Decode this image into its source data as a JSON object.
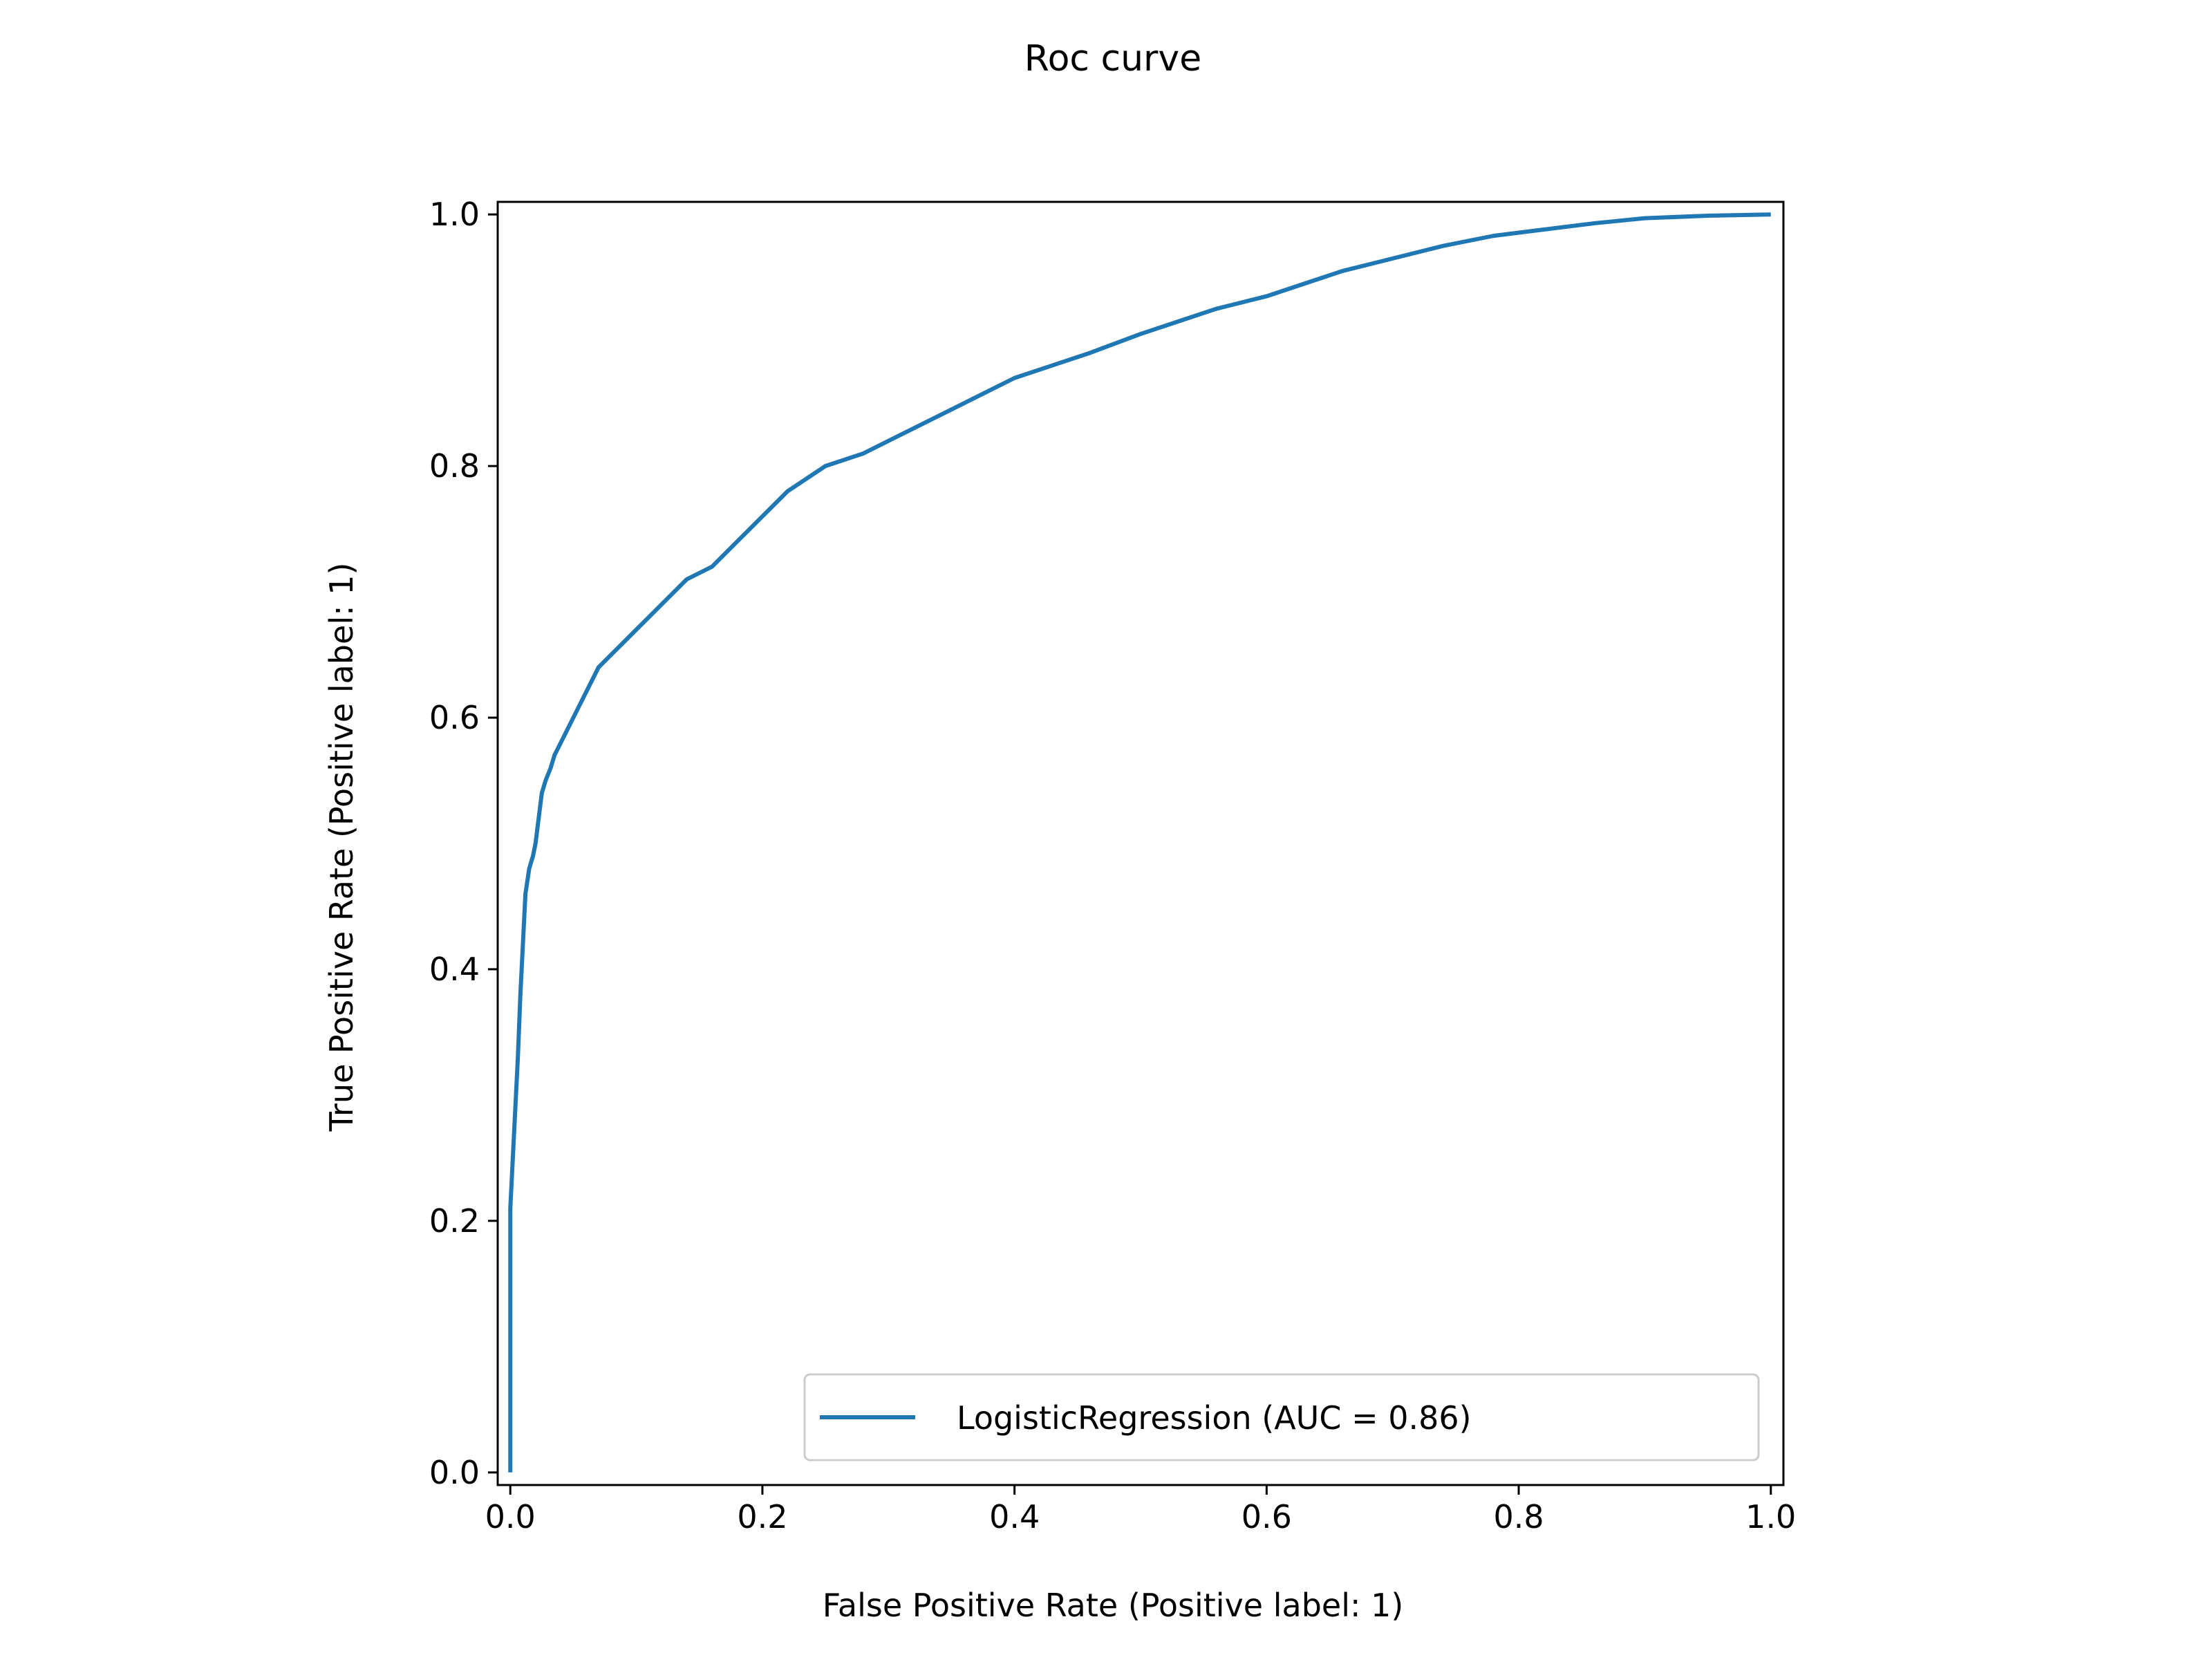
{
  "chart_data": {
    "type": "line",
    "title": "Roc curve",
    "xlabel": "False Positive Rate (Positive label: 1)",
    "ylabel": "True Positive Rate (Positive label: 1)",
    "xlim": [
      -0.01,
      1.01
    ],
    "ylim": [
      -0.01,
      1.01
    ],
    "xticks": [
      0.0,
      0.2,
      0.4,
      0.6,
      0.8,
      1.0
    ],
    "xtick_labels": [
      "0.0",
      "0.2",
      "0.4",
      "0.6",
      "0.8",
      "1.0"
    ],
    "yticks": [
      0.0,
      0.2,
      0.4,
      0.6,
      0.8,
      1.0
    ],
    "ytick_labels": [
      "0.0",
      "0.2",
      "0.4",
      "0.6",
      "0.8",
      "1.0"
    ],
    "grid": false,
    "legend": {
      "position": "lower right"
    },
    "series": [
      {
        "name": "LogisticRegression (AUC = 0.86)",
        "color": "#1f77b4",
        "x": [
          0.0,
          0.0,
          0.0,
          0.002,
          0.004,
          0.006,
          0.008,
          0.01,
          0.012,
          0.015,
          0.018,
          0.02,
          0.025,
          0.028,
          0.032,
          0.035,
          0.04,
          0.045,
          0.05,
          0.055,
          0.06,
          0.07,
          0.08,
          0.09,
          0.1,
          0.12,
          0.14,
          0.16,
          0.18,
          0.2,
          0.22,
          0.25,
          0.28,
          0.3,
          0.33,
          0.36,
          0.38,
          0.4,
          0.43,
          0.46,
          0.5,
          0.53,
          0.56,
          0.6,
          0.63,
          0.66,
          0.7,
          0.74,
          0.78,
          0.82,
          0.86,
          0.9,
          0.95,
          1.0
        ],
        "y": [
          0.0,
          0.1,
          0.21,
          0.25,
          0.29,
          0.33,
          0.38,
          0.42,
          0.46,
          0.48,
          0.49,
          0.5,
          0.54,
          0.55,
          0.56,
          0.57,
          0.58,
          0.59,
          0.6,
          0.61,
          0.62,
          0.64,
          0.65,
          0.66,
          0.67,
          0.69,
          0.71,
          0.72,
          0.74,
          0.76,
          0.78,
          0.8,
          0.81,
          0.82,
          0.835,
          0.85,
          0.86,
          0.87,
          0.88,
          0.89,
          0.905,
          0.915,
          0.925,
          0.935,
          0.945,
          0.955,
          0.965,
          0.975,
          0.983,
          0.988,
          0.993,
          0.997,
          0.999,
          1.0
        ]
      }
    ]
  }
}
